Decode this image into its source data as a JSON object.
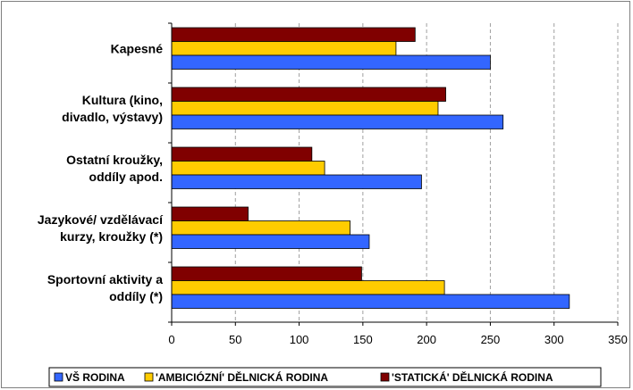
{
  "chart_data": {
    "type": "bar",
    "orientation": "horizontal",
    "categories": [
      "Kapesné",
      "Kultura (kino, divadlo, výstavy)",
      "Ostatní kroužky, oddíly apod.",
      "Jazykové/ vzdělávací kurzy, kroužky (*)",
      "Sportovní aktivity a oddíly (*)"
    ],
    "category_lines": [
      [
        "Kapesné"
      ],
      [
        "Kultura (kino,",
        "divadlo, výstavy)"
      ],
      [
        "Ostatní kroužky,",
        "oddíly apod."
      ],
      [
        "Jazykové/ vzdělávací",
        "kurzy, kroužky (*)"
      ],
      [
        "Sportovní aktivity a",
        "oddíly (*)"
      ]
    ],
    "series": [
      {
        "name": "VŠ RODINA",
        "color": "#3366ff",
        "values": [
          250,
          260,
          196,
          155,
          312
        ]
      },
      {
        "name": "'AMBICIÓZNÍ' DĚLNICKÁ RODINA",
        "color": "#ffcc00",
        "values": [
          176,
          209,
          120,
          140,
          214
        ]
      },
      {
        "name": "'STATICKÁ' DĚLNICKÁ RODINA",
        "color": "#800000",
        "values": [
          191,
          215,
          110,
          60,
          149
        ]
      }
    ],
    "xlim": [
      0,
      350
    ],
    "xticks": [
      0,
      50,
      100,
      150,
      200,
      250,
      300,
      350
    ],
    "grid": "vertical dashed",
    "legend_position": "bottom",
    "title": "",
    "xlabel": "",
    "ylabel": ""
  }
}
